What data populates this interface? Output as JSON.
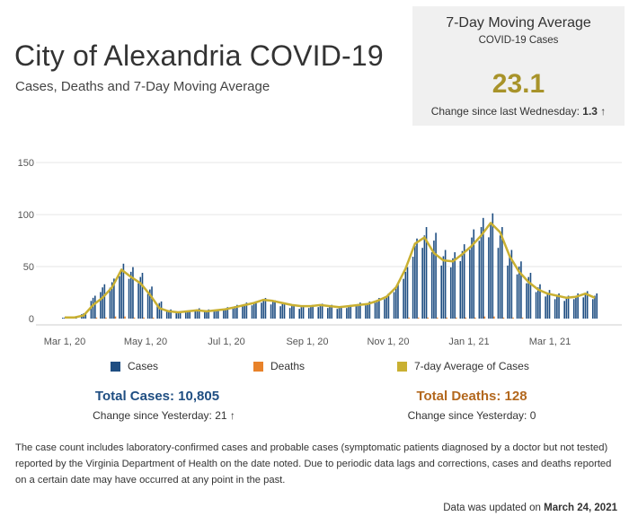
{
  "page": {
    "title": "City of Alexandria COVID-19",
    "subtitle": "Cases, Deaths  and 7-Day Moving Average"
  },
  "kpi": {
    "title": "7-Day Moving Average",
    "subtitle": "COVID-19 Cases",
    "value": "23.1",
    "change_label": "Change since last Wednesday:",
    "change_value": "1.3",
    "change_arrow": "↑"
  },
  "legend": {
    "cases": "Cases",
    "deaths": "Deaths",
    "avg": "7-day Average of Cases"
  },
  "totals": {
    "cases": "Total Cases: 10,805",
    "cases_change": "Change since Yesterday: 21 ↑",
    "deaths": "Total Deaths: 128",
    "deaths_change": "Change since Yesterday: 0"
  },
  "note": "The case count includes laboratory-confirmed cases and probable cases (symptomatic patients diagnosed by a doctor but not tested) reported by the Virginia Department of Health on the date noted. Due to periodic data lags and corrections, cases and deaths reported on a certain date may have occurred at any point in the past.",
  "updated_label": "Data was updated on",
  "updated_date": "March 24, 2021",
  "colors": {
    "cases": "#1f4e82",
    "deaths": "#e8822a",
    "avg": "#c9b032",
    "kpi_value": "#a8932a",
    "total_cases": "#1f4e82",
    "total_deaths": "#b3681e"
  },
  "chart_data": {
    "type": "bar",
    "x_ticks": [
      "Mar 1, 20",
      "May 1, 20",
      "Jul 1, 20",
      "Sep 1, 20",
      "Nov 1, 20",
      "Jan 1, 21",
      "Mar 1, 21"
    ],
    "y_ticks": [
      "0",
      "50",
      "100",
      "150"
    ],
    "ylim": [
      0,
      170
    ],
    "grid": true,
    "legend_position": "bottom",
    "series_weekly": [
      {
        "name": "Cases",
        "type": "bar",
        "color": "#1f4e82",
        "values": [
          1,
          2,
          5,
          20,
          30,
          35,
          48,
          45,
          40,
          28,
          15,
          8,
          6,
          7,
          9,
          8,
          8,
          10,
          12,
          14,
          15,
          18,
          16,
          14,
          12,
          11,
          12,
          13,
          12,
          11,
          12,
          14,
          15,
          18,
          22,
          30,
          45,
          70,
          80,
          75,
          60,
          58,
          65,
          78,
          88,
          92,
          80,
          60,
          50,
          40,
          30,
          25,
          22,
          20,
          22,
          24,
          22
        ]
      },
      {
        "name": "7-day Average of Cases",
        "type": "line",
        "color": "#c9b032",
        "values": [
          1,
          1,
          3,
          13,
          20,
          30,
          47,
          40,
          34,
          23,
          10,
          7,
          6,
          7,
          8,
          7,
          8,
          9,
          11,
          13,
          15,
          18,
          17,
          15,
          13,
          12,
          12,
          13,
          12,
          11,
          12,
          13,
          14,
          17,
          21,
          30,
          48,
          72,
          78,
          63,
          56,
          55,
          62,
          70,
          80,
          92,
          83,
          60,
          45,
          35,
          28,
          24,
          22,
          20,
          21,
          24,
          20
        ]
      },
      {
        "name": "Deaths",
        "type": "bar",
        "color": "#e8822a",
        "values": [
          0,
          0,
          0,
          1,
          1,
          2,
          2,
          1,
          1,
          1,
          0,
          0,
          0,
          0,
          0,
          0,
          0,
          0,
          0,
          0,
          0,
          0,
          0,
          0,
          0,
          0,
          0,
          0,
          0,
          0,
          0,
          0,
          0,
          0,
          0,
          0,
          1,
          1,
          1,
          1,
          1,
          1,
          1,
          1,
          2,
          2,
          1,
          1,
          1,
          0,
          0,
          0,
          0,
          0,
          0,
          0,
          0
        ]
      }
    ]
  }
}
